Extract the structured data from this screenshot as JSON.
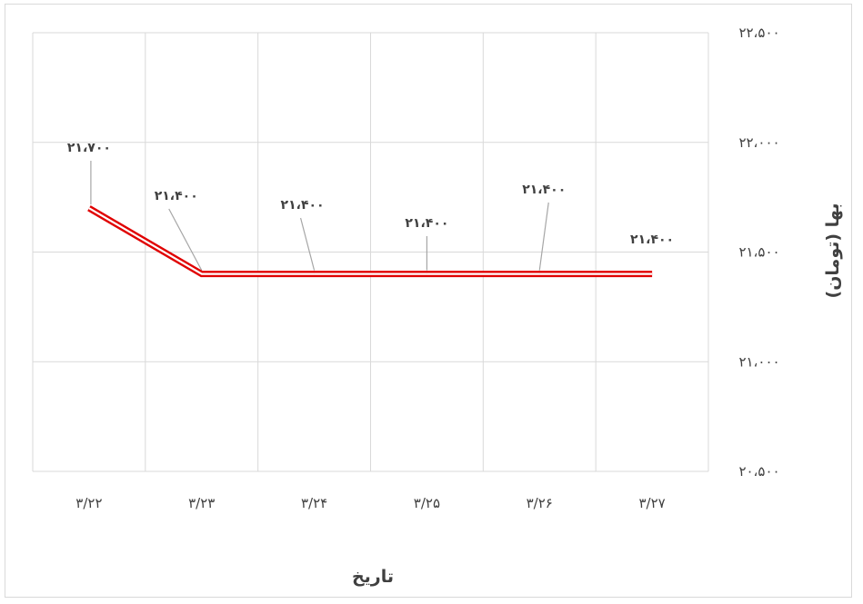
{
  "chart_data": {
    "type": "line",
    "title": "",
    "xlabel": "تاریخ",
    "ylabel": "بها (تومان)",
    "categories": [
      "۳/۲۲",
      "۳/۲۳",
      "۳/۲۴",
      "۳/۲۵",
      "۳/۲۶",
      "۳/۲۷"
    ],
    "series": [
      {
        "values": [
          21700,
          21400,
          21400,
          21400,
          21400,
          21400
        ],
        "data_labels": [
          "۲۱،۷۰۰",
          "۲۱،۴۰۰",
          "۲۱،۴۰۰",
          "۲۱،۴۰۰",
          "۲۱،۴۰۰",
          "۲۱،۴۰۰"
        ],
        "color": "#e00000"
      }
    ],
    "ylim": [
      20500,
      22500
    ],
    "y_ticks": [
      20500,
      21000,
      21500,
      22000,
      22500
    ],
    "y_tick_labels": [
      "۲۰،۵۰۰",
      "۲۱،۰۰۰",
      "۲۱،۵۰۰",
      "۲۲،۰۰۰",
      "۲۲،۵۰۰"
    ],
    "y_axis_side": "right",
    "grid": true,
    "legend": "none"
  }
}
